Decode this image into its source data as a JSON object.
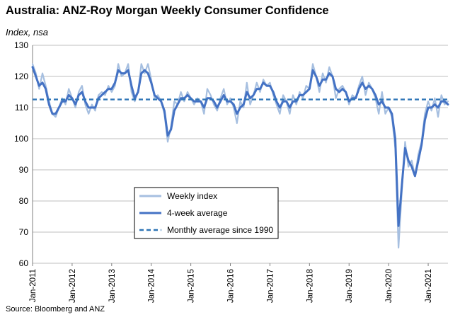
{
  "chart_data": {
    "type": "line",
    "title": "Australia: ANZ-Roy Morgan Weekly Consumer Confidence",
    "ylabel": "Index, nsa",
    "xlabel": "",
    "source": "Source: Bloomberg and ANZ",
    "ylim": [
      60,
      130
    ],
    "yticks": [
      "60",
      "70",
      "80",
      "90",
      "100",
      "110",
      "120",
      "130"
    ],
    "xlim": [
      "2011-01",
      "2021-07"
    ],
    "xticks": [
      "Jan-2011",
      "Jan-2012",
      "Jan-2013",
      "Jan-2014",
      "Jan-2015",
      "Jan-2016",
      "Jan-2017",
      "Jan-2018",
      "Jan-2019",
      "Jan-2020",
      "Jan-2021"
    ],
    "grid": "horizontal",
    "legend_position": "center",
    "colors": {
      "weekly": "#a6bfe0",
      "avg4": "#4472c4",
      "monthly": "#2e75b6",
      "grid": "#bfbfbf"
    },
    "series": [
      {
        "name": "Weekly index",
        "style": "thin light line",
        "points": [
          [
            "2011-01",
            124
          ],
          [
            "2011-02",
            121
          ],
          [
            "2011-03",
            116
          ],
          [
            "2011-04",
            121
          ],
          [
            "2011-05",
            117
          ],
          [
            "2011-06",
            112
          ],
          [
            "2011-07",
            108
          ],
          [
            "2011-08",
            107
          ],
          [
            "2011-09",
            110
          ],
          [
            "2011-10",
            113
          ],
          [
            "2011-11",
            111
          ],
          [
            "2011-12",
            116
          ],
          [
            "2012-01",
            113
          ],
          [
            "2012-02",
            110
          ],
          [
            "2012-03",
            115
          ],
          [
            "2012-04",
            117
          ],
          [
            "2012-05",
            111
          ],
          [
            "2012-06",
            108
          ],
          [
            "2012-07",
            111
          ],
          [
            "2012-08",
            109
          ],
          [
            "2012-09",
            114
          ],
          [
            "2012-10",
            115
          ],
          [
            "2012-11",
            114
          ],
          [
            "2012-12",
            117
          ],
          [
            "2013-01",
            115
          ],
          [
            "2013-02",
            117
          ],
          [
            "2013-03",
            124
          ],
          [
            "2013-04",
            120
          ],
          [
            "2013-05",
            121
          ],
          [
            "2013-06",
            124
          ],
          [
            "2013-07",
            115
          ],
          [
            "2013-08",
            112
          ],
          [
            "2013-09",
            115
          ],
          [
            "2013-10",
            124
          ],
          [
            "2013-11",
            121
          ],
          [
            "2013-12",
            124
          ],
          [
            "2014-01",
            119
          ],
          [
            "2014-02",
            113
          ],
          [
            "2014-03",
            114
          ],
          [
            "2014-04",
            112
          ],
          [
            "2014-05",
            108
          ],
          [
            "2014-06",
            99
          ],
          [
            "2014-07",
            104
          ],
          [
            "2014-08",
            112
          ],
          [
            "2014-09",
            111
          ],
          [
            "2014-10",
            115
          ],
          [
            "2014-11",
            112
          ],
          [
            "2014-12",
            115
          ],
          [
            "2015-01",
            113
          ],
          [
            "2015-02",
            111
          ],
          [
            "2015-03",
            113
          ],
          [
            "2015-04",
            112
          ],
          [
            "2015-05",
            108
          ],
          [
            "2015-06",
            116
          ],
          [
            "2015-07",
            114
          ],
          [
            "2015-08",
            111
          ],
          [
            "2015-09",
            109
          ],
          [
            "2015-10",
            113
          ],
          [
            "2015-11",
            116
          ],
          [
            "2015-12",
            111
          ],
          [
            "2016-01",
            113
          ],
          [
            "2016-02",
            110
          ],
          [
            "2016-03",
            105
          ],
          [
            "2016-04",
            112
          ],
          [
            "2016-05",
            110
          ],
          [
            "2016-06",
            118
          ],
          [
            "2016-07",
            111
          ],
          [
            "2016-08",
            114
          ],
          [
            "2016-09",
            118
          ],
          [
            "2016-10",
            115
          ],
          [
            "2016-11",
            119
          ],
          [
            "2016-12",
            117
          ],
          [
            "2017-01",
            118
          ],
          [
            "2017-02",
            114
          ],
          [
            "2017-03",
            111
          ],
          [
            "2017-04",
            108
          ],
          [
            "2017-05",
            114
          ],
          [
            "2017-06",
            112
          ],
          [
            "2017-07",
            108
          ],
          [
            "2017-08",
            114
          ],
          [
            "2017-09",
            111
          ],
          [
            "2017-10",
            115
          ],
          [
            "2017-11",
            113
          ],
          [
            "2017-12",
            117
          ],
          [
            "2018-01",
            116
          ],
          [
            "2018-02",
            124
          ],
          [
            "2018-03",
            120
          ],
          [
            "2018-04",
            115
          ],
          [
            "2018-05",
            121
          ],
          [
            "2018-06",
            118
          ],
          [
            "2018-07",
            123
          ],
          [
            "2018-08",
            120
          ],
          [
            "2018-09",
            113
          ],
          [
            "2018-10",
            116
          ],
          [
            "2018-11",
            117
          ],
          [
            "2018-12",
            115
          ],
          [
            "2019-01",
            111
          ],
          [
            "2019-02",
            114
          ],
          [
            "2019-03",
            113
          ],
          [
            "2019-04",
            117
          ],
          [
            "2019-05",
            120
          ],
          [
            "2019-06",
            114
          ],
          [
            "2019-07",
            118
          ],
          [
            "2019-08",
            116
          ],
          [
            "2019-09",
            113
          ],
          [
            "2019-10",
            108
          ],
          [
            "2019-11",
            115
          ],
          [
            "2019-12",
            108
          ],
          [
            "2020-01",
            110
          ],
          [
            "2020-02",
            107
          ],
          [
            "2020-03",
            97
          ],
          [
            "2020-04",
            65
          ],
          [
            "2020-05",
            83
          ],
          [
            "2020-06",
            99
          ],
          [
            "2020-07",
            91
          ],
          [
            "2020-08",
            93
          ],
          [
            "2020-09",
            88
          ],
          [
            "2020-10",
            95
          ],
          [
            "2020-11",
            99
          ],
          [
            "2020-12",
            108
          ],
          [
            "2021-01",
            112
          ],
          [
            "2021-02",
            109
          ],
          [
            "2021-03",
            113
          ],
          [
            "2021-04",
            107
          ],
          [
            "2021-05",
            114
          ],
          [
            "2021-06",
            111
          ],
          [
            "2021-07",
            112
          ]
        ]
      },
      {
        "name": "4-week average",
        "style": "thick dark line",
        "points": [
          [
            "2011-01",
            123
          ],
          [
            "2011-02",
            120
          ],
          [
            "2011-03",
            117
          ],
          [
            "2011-04",
            118
          ],
          [
            "2011-05",
            116
          ],
          [
            "2011-06",
            111
          ],
          [
            "2011-07",
            108
          ],
          [
            "2011-08",
            108
          ],
          [
            "2011-09",
            110
          ],
          [
            "2011-10",
            112
          ],
          [
            "2011-11",
            112
          ],
          [
            "2011-12",
            114
          ],
          [
            "2012-01",
            113
          ],
          [
            "2012-02",
            111
          ],
          [
            "2012-03",
            114
          ],
          [
            "2012-04",
            115
          ],
          [
            "2012-05",
            112
          ],
          [
            "2012-06",
            110
          ],
          [
            "2012-07",
            110
          ],
          [
            "2012-08",
            110
          ],
          [
            "2012-09",
            113
          ],
          [
            "2012-10",
            114
          ],
          [
            "2012-11",
            115
          ],
          [
            "2012-12",
            116
          ],
          [
            "2013-01",
            116
          ],
          [
            "2013-02",
            118
          ],
          [
            "2013-03",
            122
          ],
          [
            "2013-04",
            121
          ],
          [
            "2013-05",
            121
          ],
          [
            "2013-06",
            122
          ],
          [
            "2013-07",
            117
          ],
          [
            "2013-08",
            113
          ],
          [
            "2013-09",
            115
          ],
          [
            "2013-10",
            121
          ],
          [
            "2013-11",
            122
          ],
          [
            "2013-12",
            121
          ],
          [
            "2014-01",
            118
          ],
          [
            "2014-02",
            114
          ],
          [
            "2014-03",
            113
          ],
          [
            "2014-04",
            112
          ],
          [
            "2014-05",
            109
          ],
          [
            "2014-06",
            101
          ],
          [
            "2014-07",
            103
          ],
          [
            "2014-08",
            109
          ],
          [
            "2014-09",
            111
          ],
          [
            "2014-10",
            113
          ],
          [
            "2014-11",
            113
          ],
          [
            "2014-12",
            114
          ],
          [
            "2015-01",
            113
          ],
          [
            "2015-02",
            112
          ],
          [
            "2015-03",
            112
          ],
          [
            "2015-04",
            112
          ],
          [
            "2015-05",
            110
          ],
          [
            "2015-06",
            113
          ],
          [
            "2015-07",
            113
          ],
          [
            "2015-08",
            112
          ],
          [
            "2015-09",
            110
          ],
          [
            "2015-10",
            112
          ],
          [
            "2015-11",
            114
          ],
          [
            "2015-12",
            112
          ],
          [
            "2016-01",
            112
          ],
          [
            "2016-02",
            111
          ],
          [
            "2016-03",
            108
          ],
          [
            "2016-04",
            110
          ],
          [
            "2016-05",
            111
          ],
          [
            "2016-06",
            115
          ],
          [
            "2016-07",
            113
          ],
          [
            "2016-08",
            114
          ],
          [
            "2016-09",
            116
          ],
          [
            "2016-10",
            116
          ],
          [
            "2016-11",
            118
          ],
          [
            "2016-12",
            117
          ],
          [
            "2017-01",
            117
          ],
          [
            "2017-02",
            115
          ],
          [
            "2017-03",
            112
          ],
          [
            "2017-04",
            110
          ],
          [
            "2017-05",
            112
          ],
          [
            "2017-06",
            112
          ],
          [
            "2017-07",
            110
          ],
          [
            "2017-08",
            112
          ],
          [
            "2017-09",
            112
          ],
          [
            "2017-10",
            114
          ],
          [
            "2017-11",
            114
          ],
          [
            "2017-12",
            115
          ],
          [
            "2018-01",
            116
          ],
          [
            "2018-02",
            122
          ],
          [
            "2018-03",
            120
          ],
          [
            "2018-04",
            117
          ],
          [
            "2018-05",
            119
          ],
          [
            "2018-06",
            119
          ],
          [
            "2018-07",
            121
          ],
          [
            "2018-08",
            120
          ],
          [
            "2018-09",
            116
          ],
          [
            "2018-10",
            115
          ],
          [
            "2018-11",
            116
          ],
          [
            "2018-12",
            115
          ],
          [
            "2019-01",
            112
          ],
          [
            "2019-02",
            113
          ],
          [
            "2019-03",
            113
          ],
          [
            "2019-04",
            116
          ],
          [
            "2019-05",
            118
          ],
          [
            "2019-06",
            116
          ],
          [
            "2019-07",
            117
          ],
          [
            "2019-08",
            116
          ],
          [
            "2019-09",
            114
          ],
          [
            "2019-10",
            111
          ],
          [
            "2019-11",
            112
          ],
          [
            "2019-12",
            110
          ],
          [
            "2020-01",
            110
          ],
          [
            "2020-02",
            108
          ],
          [
            "2020-03",
            100
          ],
          [
            "2020-04",
            72
          ],
          [
            "2020-05",
            85
          ],
          [
            "2020-06",
            97
          ],
          [
            "2020-07",
            93
          ],
          [
            "2020-08",
            91
          ],
          [
            "2020-09",
            88
          ],
          [
            "2020-10",
            93
          ],
          [
            "2020-11",
            98
          ],
          [
            "2020-12",
            106
          ],
          [
            "2021-01",
            110
          ],
          [
            "2021-02",
            110
          ],
          [
            "2021-03",
            111
          ],
          [
            "2021-04",
            110
          ],
          [
            "2021-05",
            112
          ],
          [
            "2021-06",
            112
          ],
          [
            "2021-07",
            111
          ]
        ]
      },
      {
        "name": "Monthly average since 1990",
        "style": "dashed horizontal",
        "value": 112.6
      }
    ]
  }
}
